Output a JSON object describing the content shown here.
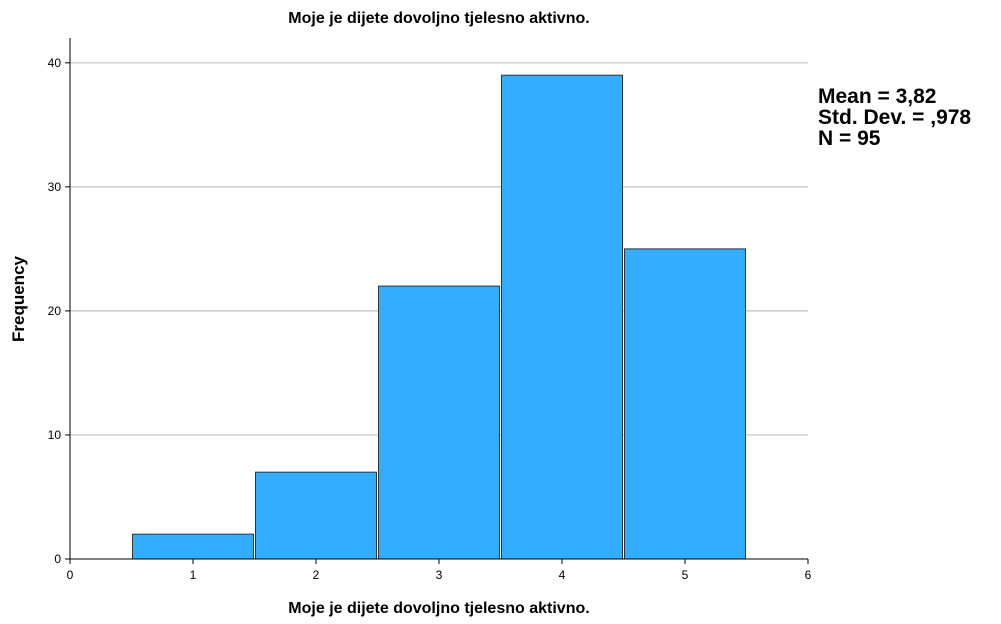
{
  "chart_data": {
    "type": "bar",
    "title": "Moje je dijete dovoljno tjelesno aktivno.",
    "xlabel": "Moje je dijete dovoljno tjelesno aktivno.",
    "ylabel": "Frequency",
    "categories": [
      "1",
      "2",
      "3",
      "4",
      "5"
    ],
    "values": [
      2,
      7,
      22,
      39,
      25
    ],
    "x_ticks": [
      "0",
      "1",
      "2",
      "3",
      "4",
      "5",
      "6"
    ],
    "y_ticks": [
      "0",
      "10",
      "20",
      "30",
      "40"
    ],
    "xlim": [
      0,
      6
    ],
    "ylim": [
      0,
      42
    ],
    "grid": true,
    "bar_color": "#33adff",
    "bar_edge_color": "#333333",
    "grid_color": "#c0c0c0"
  },
  "stats": {
    "mean": "Mean = 3,82",
    "std_dev": "Std. Dev. = ,978",
    "n": "N = 95"
  }
}
